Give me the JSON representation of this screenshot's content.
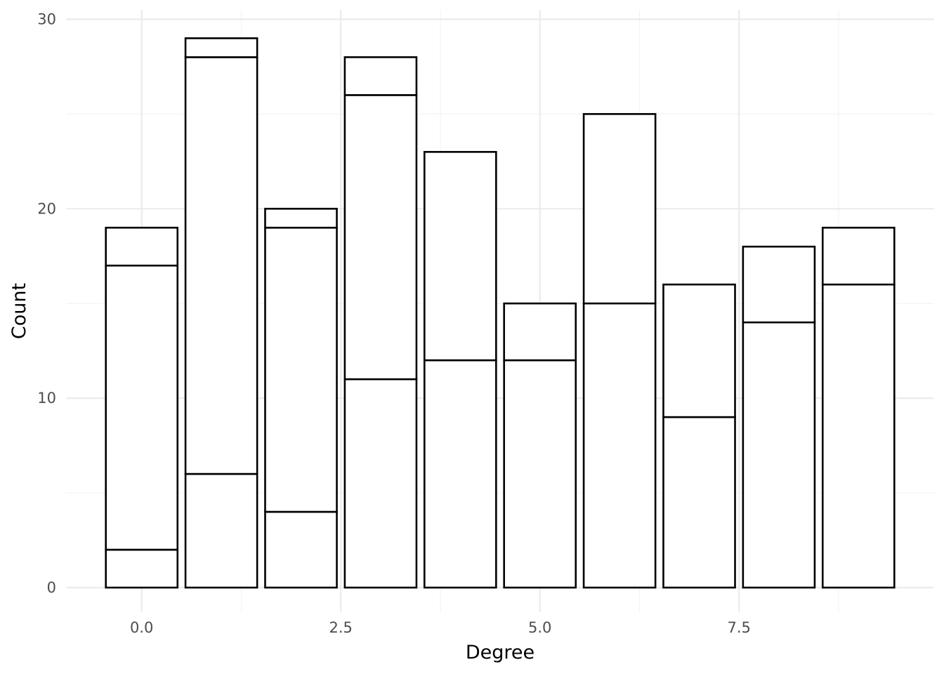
{
  "chart_data": {
    "type": "bar",
    "stacked": true,
    "xlabel": "Degree",
    "ylabel": "Count",
    "x": [
      0,
      1,
      2,
      3,
      4,
      5,
      6,
      7,
      8,
      9
    ],
    "segments": [
      [
        2,
        15,
        2
      ],
      [
        6,
        22,
        1
      ],
      [
        4,
        15,
        1
      ],
      [
        11,
        15,
        2
      ],
      [
        12,
        11
      ],
      [
        12,
        3
      ],
      [
        15,
        10
      ],
      [
        9,
        7
      ],
      [
        14,
        4
      ],
      [
        16,
        3
      ]
    ],
    "totals": [
      19,
      29,
      20,
      28,
      23,
      15,
      25,
      16,
      18,
      19
    ],
    "xlim": [
      -0.95,
      9.95
    ],
    "ylim": [
      -1.3,
      30.5
    ],
    "xticks": [
      0,
      2.5,
      5,
      7.5
    ],
    "xtick_labels": [
      "0.0",
      "2.5",
      "5.0",
      "7.5"
    ],
    "yticks": [
      0,
      10,
      20,
      30
    ],
    "ytick_labels": [
      "0",
      "10",
      "20",
      "30"
    ],
    "grid": true,
    "fill_color": "#ffffff",
    "outline_color": "#000000",
    "legend": "none"
  }
}
